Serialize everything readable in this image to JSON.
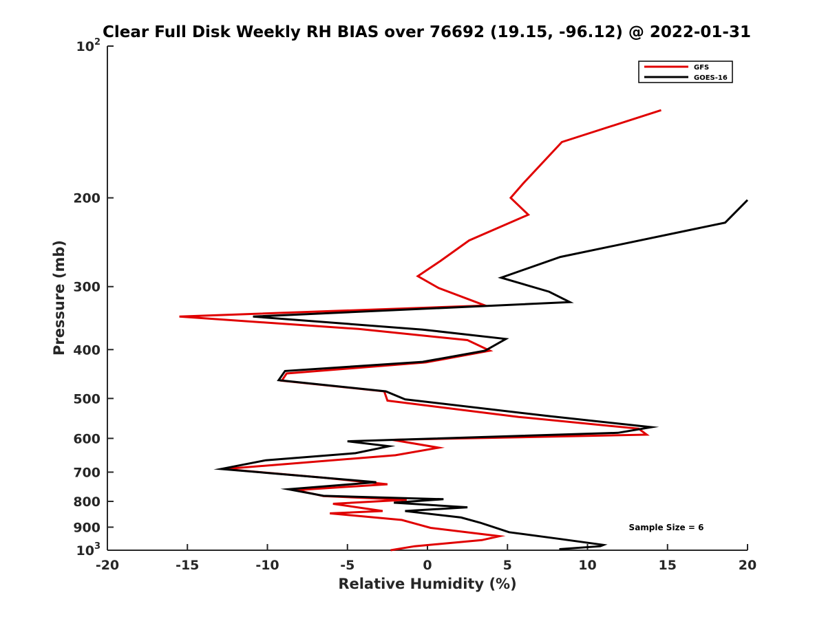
{
  "chart_data": {
    "type": "line",
    "title": "Clear Full Disk Weekly RH BIAS over 76692 (19.15, -96.12) @ 2022-01-31",
    "xlabel": "Relative Humidity (%)",
    "ylabel": "Pressure (mb)",
    "xlim": [
      -20,
      20
    ],
    "ylim": [
      100,
      1000
    ],
    "yscale": "log",
    "y_reversed": true,
    "grid": false,
    "legend_position": "top-right",
    "x_ticks": [
      -20,
      -15,
      -10,
      -5,
      0,
      5,
      10,
      15,
      20
    ],
    "x_tick_labels": [
      "-20",
      "-15",
      "-10",
      "-5",
      "0",
      "5",
      "10",
      "15",
      "20"
    ],
    "y_ticks": [
      100,
      200,
      300,
      400,
      500,
      600,
      700,
      800,
      900,
      1000
    ],
    "y_tick_labels": [
      {
        "base": "10",
        "exp": "2"
      },
      {
        "base": "200",
        "exp": ""
      },
      {
        "base": "300",
        "exp": ""
      },
      {
        "base": "400",
        "exp": ""
      },
      {
        "base": "500",
        "exp": ""
      },
      {
        "base": "600",
        "exp": ""
      },
      {
        "base": "700",
        "exp": ""
      },
      {
        "base": "800",
        "exp": ""
      },
      {
        "base": "900",
        "exp": ""
      },
      {
        "base": "10",
        "exp": "3"
      }
    ],
    "annotation": "Sample Size = 6",
    "series": [
      {
        "name": "GFS",
        "color": "#e00000",
        "points": [
          [
            14.6,
            134
          ],
          [
            8.4,
            155
          ],
          [
            6.0,
            187
          ],
          [
            5.2,
            200
          ],
          [
            6.3,
            216
          ],
          [
            2.6,
            243
          ],
          [
            0.8,
            267
          ],
          [
            -0.6,
            286
          ],
          [
            0.7,
            302
          ],
          [
            3.6,
            327
          ],
          [
            -15.5,
            344
          ],
          [
            -4.3,
            364
          ],
          [
            2.5,
            383
          ],
          [
            3.9,
            402
          ],
          [
            -0.1,
            424
          ],
          [
            -8.8,
            446
          ],
          [
            -9.1,
            461
          ],
          [
            -2.7,
            484
          ],
          [
            -2.5,
            505
          ],
          [
            5.7,
            544
          ],
          [
            13.2,
            574
          ],
          [
            13.7,
            590
          ],
          [
            -2.2,
            604
          ],
          [
            0.7,
            626
          ],
          [
            -2.0,
            648
          ],
          [
            -12.7,
            690
          ],
          [
            -6.5,
            718
          ],
          [
            -2.5,
            740
          ],
          [
            -8.2,
            760
          ],
          [
            -6.5,
            781
          ],
          [
            -1.3,
            794
          ],
          [
            -5.9,
            809
          ],
          [
            -2.8,
            836
          ],
          [
            -6.1,
            845
          ],
          [
            -1.6,
            871
          ],
          [
            0.2,
            903
          ],
          [
            4.5,
            938
          ],
          [
            3.4,
            955
          ],
          [
            -0.8,
            982
          ],
          [
            -2.3,
            1000
          ]
        ]
      },
      {
        "name": "GOES-16",
        "color": "#000000",
        "points": [
          [
            20.0,
            202
          ],
          [
            18.6,
            224
          ],
          [
            8.3,
            262
          ],
          [
            4.6,
            288
          ],
          [
            7.6,
            307
          ],
          [
            8.9,
            322
          ],
          [
            -10.9,
            344
          ],
          [
            -0.3,
            365
          ],
          [
            4.9,
            381
          ],
          [
            3.6,
            402
          ],
          [
            -0.3,
            423
          ],
          [
            -8.9,
            441
          ],
          [
            -9.3,
            460
          ],
          [
            -2.6,
            484
          ],
          [
            -1.4,
            502
          ],
          [
            7.6,
            542
          ],
          [
            14.0,
            570
          ],
          [
            11.9,
            585
          ],
          [
            -5.0,
            608
          ],
          [
            -2.4,
            622
          ],
          [
            -4.5,
            642
          ],
          [
            -10.1,
            663
          ],
          [
            -12.9,
            690
          ],
          [
            -6.9,
            716
          ],
          [
            -3.2,
            733
          ],
          [
            -8.7,
            757
          ],
          [
            -6.5,
            780
          ],
          [
            1.0,
            792
          ],
          [
            -2.1,
            805
          ],
          [
            2.5,
            822
          ],
          [
            -1.4,
            836
          ],
          [
            2.1,
            861
          ],
          [
            3.3,
            882
          ],
          [
            5.1,
            921
          ],
          [
            8.3,
            950
          ],
          [
            11.0,
            976
          ],
          [
            10.8,
            982
          ],
          [
            8.3,
            995
          ],
          [
            8.3,
            1000
          ]
        ]
      }
    ]
  }
}
